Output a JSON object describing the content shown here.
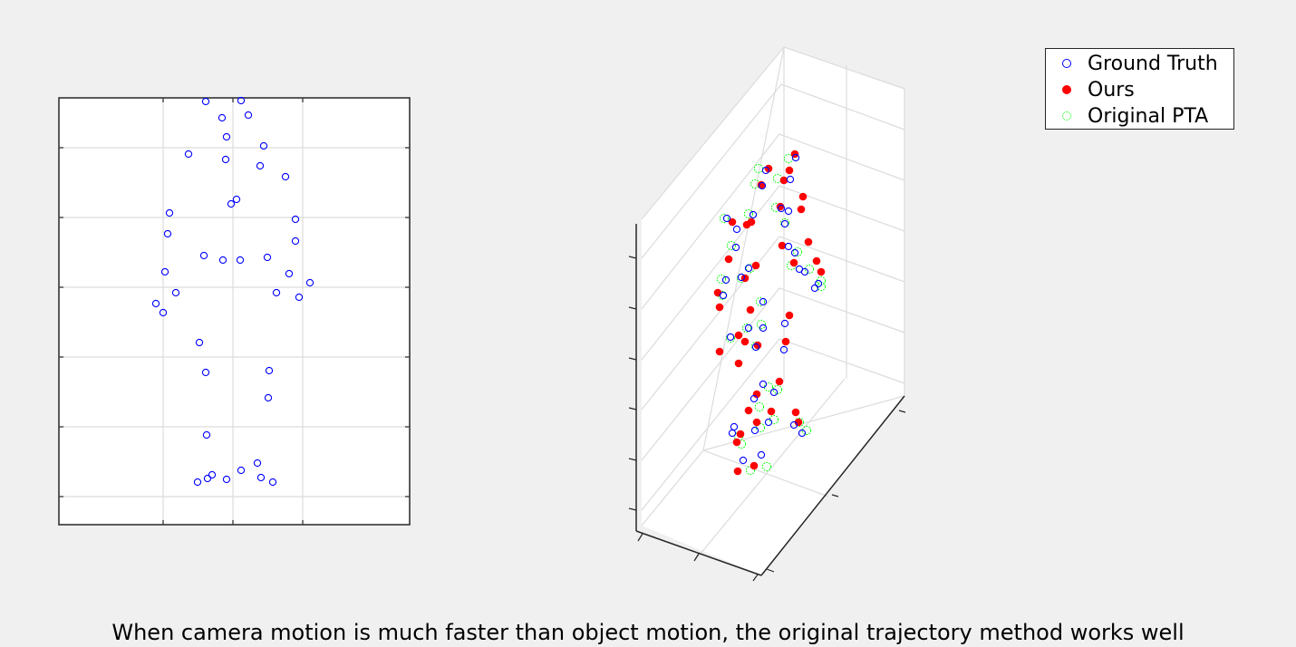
{
  "caption": "When camera motion is much faster than object motion, the original trajectory method works well",
  "legend": {
    "items": [
      {
        "label": "Ground Truth",
        "marker": "open-circle",
        "color": "#0000ff"
      },
      {
        "label": "Ours",
        "marker": "filled-circle",
        "color": "#ff0000"
      },
      {
        "label": "Original PTA",
        "marker": "dotted-circle",
        "color": "#00ff00"
      }
    ]
  },
  "chart_data": [
    {
      "type": "scatter",
      "title": "",
      "xlabel": "",
      "ylabel": "",
      "grid": true,
      "tick_labels": false,
      "series": [
        {
          "name": "Ground Truth",
          "color": "#0000ff",
          "marker": "open-circle",
          "points": [
            [
              227,
              112
            ],
            [
              266,
              111
            ],
            [
              245,
              130
            ],
            [
              274,
              127
            ],
            [
              250,
              151
            ],
            [
              291,
              161
            ],
            [
              208,
              170
            ],
            [
              249,
              176
            ],
            [
              287,
              183
            ],
            [
              315,
              195
            ],
            [
              261,
              220
            ],
            [
              255,
              225
            ],
            [
              187,
              235
            ],
            [
              326,
              242
            ],
            [
              185,
              258
            ],
            [
              326,
              266
            ],
            [
              225,
              282
            ],
            [
              246,
              287
            ],
            [
              265,
              287
            ],
            [
              295,
              284
            ],
            [
              182,
              300
            ],
            [
              319,
              302
            ],
            [
              342,
              312
            ],
            [
              194,
              323
            ],
            [
              305,
              323
            ],
            [
              330,
              328
            ],
            [
              172,
              335
            ],
            [
              180,
              345
            ],
            [
              220,
              378
            ],
            [
              227,
              411
            ],
            [
              297,
              409
            ],
            [
              296,
              439
            ],
            [
              228,
              480
            ],
            [
              284,
              511
            ],
            [
              266,
              519
            ],
            [
              234,
              524
            ],
            [
              229,
              528
            ],
            [
              218,
              532
            ],
            [
              250,
              529
            ],
            [
              288,
              527
            ],
            [
              301,
              532
            ]
          ]
        }
      ]
    },
    {
      "type": "scatter",
      "projection": "3d",
      "title": "",
      "xlabel": "",
      "ylabel": "",
      "zlabel": "",
      "grid": true,
      "tick_labels": false,
      "series": [
        {
          "name": "Ground Truth",
          "color": "#0000ff",
          "marker": "open-circle",
          "points": [
            [
              878,
              174
            ],
            [
              845,
              188
            ],
            [
              841,
              205
            ],
            [
              872,
              198
            ],
            [
              862,
              230
            ],
            [
              870,
              233
            ],
            [
              831,
              237
            ],
            [
              802,
              241
            ],
            [
              813,
              253
            ],
            [
              866,
              247
            ],
            [
              870,
              272
            ],
            [
              812,
              273
            ],
            [
              877,
              279
            ],
            [
              882,
              297
            ],
            [
              888,
              300
            ],
            [
              826,
              296
            ],
            [
              818,
              306
            ],
            [
              801,
              309
            ],
            [
              903,
              313
            ],
            [
              899,
              318
            ],
            [
              798,
              326
            ],
            [
              842,
              333
            ],
            [
              866,
              357
            ],
            [
              826,
              362
            ],
            [
              806,
              372
            ],
            [
              842,
              362
            ],
            [
              834,
              383
            ],
            [
              865,
              386
            ],
            [
              842,
              424
            ],
            [
              854,
              433
            ],
            [
              832,
              440
            ],
            [
              848,
              466
            ],
            [
              876,
              469
            ],
            [
              833,
              475
            ],
            [
              810,
              471
            ],
            [
              808,
              478
            ],
            [
              885,
              478
            ],
            [
              840,
              502
            ],
            [
              820,
              508
            ]
          ]
        },
        {
          "name": "Ours",
          "color": "#ff0000",
          "marker": "filled-circle",
          "points": [
            [
              877,
              170
            ],
            [
              848,
              186
            ],
            [
              871,
              188
            ],
            [
              840,
              204
            ],
            [
              865,
              199
            ],
            [
              886,
              217
            ],
            [
              884,
              231
            ],
            [
              861,
              228
            ],
            [
              808,
              245
            ],
            [
              824,
              248
            ],
            [
              829,
              245
            ],
            [
              892,
              267
            ],
            [
              863,
              271
            ],
            [
              876,
              290
            ],
            [
              901,
              288
            ],
            [
              906,
              300
            ],
            [
              804,
              286
            ],
            [
              834,
              293
            ],
            [
              822,
              307
            ],
            [
              792,
              323
            ],
            [
              794,
              339
            ],
            [
              828,
              342
            ],
            [
              871,
              348
            ],
            [
              815,
              370
            ],
            [
              822,
              377
            ],
            [
              867,
              377
            ],
            [
              836,
              381
            ],
            [
              794,
              388
            ],
            [
              815,
              401
            ],
            [
              860,
              421
            ],
            [
              835,
              435
            ],
            [
              826,
              453
            ],
            [
              851,
              454
            ],
            [
              878,
              455
            ],
            [
              835,
              466
            ],
            [
              881,
              466
            ],
            [
              817,
              479
            ],
            [
              813,
              488
            ],
            [
              832,
              514
            ],
            [
              814,
              520
            ]
          ]
        },
        {
          "name": "Original PTA",
          "color": "#00ff00",
          "marker": "dotted-circle",
          "points": [
            [
              837,
              186
            ],
            [
              870,
              175
            ],
            [
              858,
              197
            ],
            [
              833,
              203
            ],
            [
              856,
              229
            ],
            [
              826,
              236
            ],
            [
              799,
              241
            ],
            [
              866,
              246
            ],
            [
              807,
              271
            ],
            [
              880,
              278
            ],
            [
              893,
              297
            ],
            [
              873,
              293
            ],
            [
              906,
              310
            ],
            [
              906,
              316
            ],
            [
              828,
              296
            ],
            [
              818,
              307
            ],
            [
              796,
              308
            ],
            [
              797,
              326
            ],
            [
              839,
              333
            ],
            [
              824,
              362
            ],
            [
              840,
              358
            ],
            [
              806,
              373
            ],
            [
              834,
              382
            ],
            [
              848,
              427
            ],
            [
              858,
              430
            ],
            [
              838,
              449
            ],
            [
              854,
              463
            ],
            [
              839,
              472
            ],
            [
              882,
              466
            ],
            [
              890,
              475
            ],
            [
              815,
              482
            ],
            [
              818,
              490
            ],
            [
              846,
              515
            ],
            [
              828,
              519
            ]
          ]
        }
      ]
    }
  ]
}
